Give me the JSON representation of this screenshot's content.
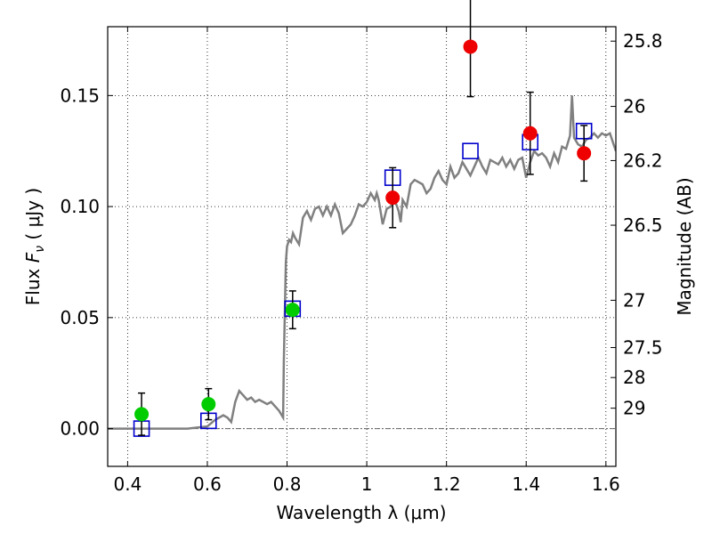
{
  "chart_data": {
    "type": "scatter",
    "xlabel": "Wavelength  λ (μm)",
    "ylabel": "Flux  F_ν  ( μJy )",
    "ylabel_parts": {
      "prefix": "Flux  ",
      "symbol": "F",
      "subscript": "ν",
      "suffix": "  ( μJy )"
    },
    "y2label": "Magnitude (AB)",
    "xlim": [
      0.35,
      1.625
    ],
    "ylim": [
      -0.017,
      0.181
    ],
    "grid": true,
    "xticks": [
      0.4,
      0.6,
      0.8,
      1.0,
      1.2,
      1.4,
      1.6
    ],
    "xtick_labels": [
      "0.4",
      "0.6",
      "0.8",
      "1",
      "1.2",
      "1.4",
      "1.6"
    ],
    "yticks": [
      0.0,
      0.05,
      0.1,
      0.15
    ],
    "ytick_labels": [
      "0.00",
      "0.05",
      "0.10",
      "0.15"
    ],
    "y2ticks": [
      {
        "label": "25.8",
        "flux": 0.1745
      },
      {
        "label": "26",
        "flux": 0.1451
      },
      {
        "label": "26.2",
        "flux": 0.1207
      },
      {
        "label": "26.5",
        "flux": 0.0916
      },
      {
        "label": "27",
        "flux": 0.0578
      },
      {
        "label": "27.5",
        "flux": 0.0365
      },
      {
        "label": "28",
        "flux": 0.023
      },
      {
        "label": "29",
        "flux": 0.0092
      }
    ],
    "zero_line": 0.0,
    "colors": {
      "model": "#808080",
      "model_points": "#0000cc",
      "green": "#00cc00",
      "red": "#ee0000",
      "errorbar": "#000000",
      "zero_line": "#666666"
    },
    "model_spectrum": {
      "x": [
        0.35,
        0.55,
        0.6,
        0.62,
        0.64,
        0.65,
        0.66,
        0.67,
        0.68,
        0.69,
        0.7,
        0.71,
        0.72,
        0.73,
        0.74,
        0.75,
        0.76,
        0.77,
        0.78,
        0.79,
        0.792,
        0.797,
        0.8,
        0.805,
        0.81,
        0.815,
        0.82,
        0.83,
        0.84,
        0.85,
        0.86,
        0.87,
        0.88,
        0.89,
        0.9,
        0.91,
        0.92,
        0.93,
        0.94,
        0.95,
        0.96,
        0.97,
        0.98,
        0.99,
        1.0,
        1.01,
        1.02,
        1.025,
        1.03,
        1.04,
        1.05,
        1.06,
        1.07,
        1.08,
        1.085,
        1.09,
        1.1,
        1.11,
        1.12,
        1.13,
        1.14,
        1.15,
        1.16,
        1.17,
        1.18,
        1.19,
        1.2,
        1.21,
        1.22,
        1.23,
        1.24,
        1.25,
        1.26,
        1.27,
        1.28,
        1.29,
        1.3,
        1.31,
        1.32,
        1.33,
        1.34,
        1.35,
        1.36,
        1.37,
        1.38,
        1.39,
        1.4,
        1.41,
        1.42,
        1.43,
        1.44,
        1.45,
        1.46,
        1.47,
        1.48,
        1.49,
        1.5,
        1.51,
        1.515,
        1.52,
        1.53,
        1.54,
        1.55,
        1.56,
        1.57,
        1.58,
        1.59,
        1.6,
        1.61,
        1.625
      ],
      "y": [
        0.0,
        0.0,
        0.001,
        0.004,
        0.006,
        0.005,
        0.003,
        0.012,
        0.017,
        0.015,
        0.013,
        0.014,
        0.012,
        0.013,
        0.012,
        0.011,
        0.012,
        0.01,
        0.008,
        0.005,
        0.03,
        0.075,
        0.082,
        0.085,
        0.084,
        0.088,
        0.086,
        0.083,
        0.095,
        0.098,
        0.094,
        0.099,
        0.1,
        0.096,
        0.1,
        0.096,
        0.101,
        0.097,
        0.088,
        0.09,
        0.092,
        0.096,
        0.101,
        0.1,
        0.102,
        0.106,
        0.103,
        0.106,
        0.103,
        0.092,
        0.099,
        0.1,
        0.103,
        0.098,
        0.093,
        0.103,
        0.1,
        0.11,
        0.112,
        0.111,
        0.11,
        0.106,
        0.108,
        0.113,
        0.116,
        0.112,
        0.11,
        0.118,
        0.113,
        0.115,
        0.12,
        0.117,
        0.114,
        0.118,
        0.122,
        0.118,
        0.115,
        0.121,
        0.12,
        0.119,
        0.122,
        0.118,
        0.121,
        0.117,
        0.121,
        0.122,
        0.113,
        0.12,
        0.125,
        0.123,
        0.124,
        0.122,
        0.118,
        0.124,
        0.12,
        0.127,
        0.126,
        0.132,
        0.15,
        0.131,
        0.128,
        0.127,
        0.13,
        0.131,
        0.133,
        0.131,
        0.133,
        0.132,
        0.133,
        0.125
      ]
    },
    "series": [
      {
        "marker": "square",
        "color": "#0000cc",
        "x": [
          0.435,
          0.603,
          0.814,
          1.065,
          1.26,
          1.41,
          1.545
        ],
        "y": [
          0.0,
          0.0035,
          0.054,
          0.113,
          0.125,
          0.129,
          0.134
        ]
      },
      {
        "marker": "circle",
        "color": "#00cc00",
        "x": [
          0.435,
          0.603,
          0.814
        ],
        "y": [
          0.0065,
          0.011,
          0.0535
        ],
        "yerr": [
          0.0095,
          0.007,
          0.0085
        ]
      },
      {
        "marker": "circle",
        "color": "#ee0000",
        "x": [
          1.065,
          1.26,
          1.41,
          1.545
        ],
        "y": [
          0.104,
          0.172,
          0.133,
          0.124
        ],
        "yerr": [
          0.0135,
          0.0225,
          0.0185,
          0.0125
        ]
      }
    ]
  }
}
